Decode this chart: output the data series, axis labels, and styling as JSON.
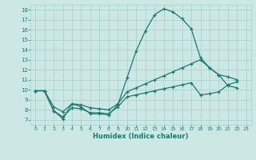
{
  "xlabel": "Humidex (Indice chaleur)",
  "bg_color": "#cce8e4",
  "line_color": "#1a7a6e",
  "grid_color": "#aacfcb",
  "xlim": [
    -0.5,
    23.5
  ],
  "ylim": [
    6.5,
    18.5
  ],
  "xticks": [
    0,
    1,
    2,
    3,
    4,
    5,
    6,
    7,
    8,
    9,
    10,
    11,
    12,
    13,
    14,
    15,
    16,
    17,
    18,
    19,
    20,
    21,
    22,
    23
  ],
  "yticks": [
    7,
    8,
    9,
    10,
    11,
    12,
    13,
    14,
    15,
    16,
    17,
    18
  ],
  "series1_x": [
    0,
    1,
    2,
    3,
    4,
    5,
    6,
    7,
    8,
    9,
    10,
    11,
    12,
    13,
    14,
    15,
    16,
    17,
    18,
    19,
    20,
    21,
    22
  ],
  "series1_y": [
    9.9,
    9.9,
    7.9,
    7.1,
    8.6,
    8.3,
    7.6,
    7.6,
    7.5,
    8.5,
    11.2,
    13.9,
    15.9,
    17.5,
    18.1,
    17.8,
    17.1,
    16.1,
    13.2,
    12.2,
    11.5,
    10.4,
    10.2
  ],
  "series2_x": [
    0,
    1,
    2,
    3,
    4,
    5,
    6,
    7,
    8,
    9,
    10,
    11,
    12,
    13,
    14,
    15,
    16,
    17,
    18,
    19,
    20,
    21,
    22
  ],
  "series2_y": [
    9.9,
    9.9,
    8.3,
    7.8,
    8.6,
    8.5,
    8.2,
    8.1,
    8.0,
    8.6,
    9.8,
    10.2,
    10.6,
    11.0,
    11.4,
    11.8,
    12.2,
    12.6,
    13.0,
    12.2,
    11.5,
    11.3,
    11.0
  ],
  "series3_x": [
    0,
    1,
    2,
    3,
    4,
    5,
    6,
    7,
    8,
    9,
    10,
    11,
    12,
    13,
    14,
    15,
    16,
    17,
    18,
    19,
    20,
    21,
    22
  ],
  "series3_y": [
    9.9,
    9.9,
    7.9,
    7.3,
    8.2,
    8.1,
    7.7,
    7.7,
    7.6,
    8.3,
    9.3,
    9.5,
    9.7,
    9.9,
    10.1,
    10.3,
    10.5,
    10.7,
    9.5,
    9.6,
    9.8,
    10.5,
    10.8
  ]
}
